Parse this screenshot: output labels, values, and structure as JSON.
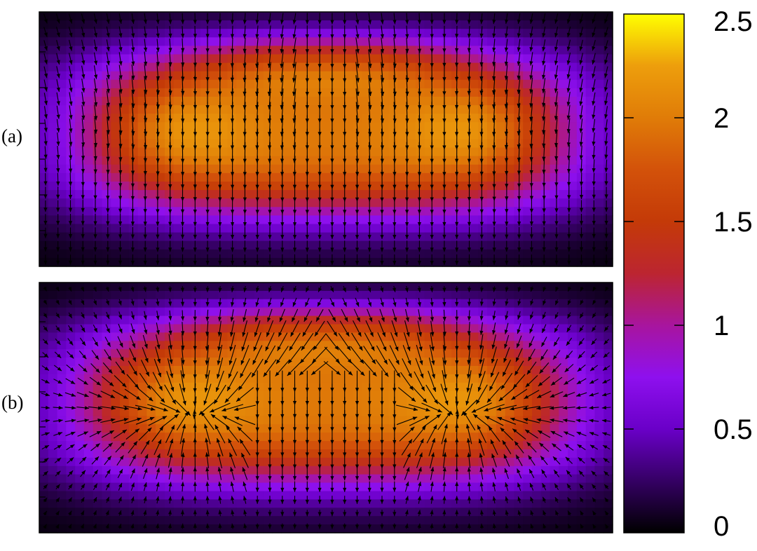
{
  "chart_data": {
    "type": "heatmap",
    "panels": [
      {
        "label": "(a)",
        "field": "two-lobed elongated density blob; peaks near the left and right lobes (~2.0-2.2), central band ~1.6-1.7, falling to ~0.5 at the rim and ~0 at the corners",
        "vectors": "arrows point predominantly downward; converging toward the center in the upper half of the lobes",
        "xrange": [
          0,
          1
        ],
        "yrange": [
          0,
          1
        ],
        "rotation": "counter-clockwise"
      },
      {
        "label": "(b)",
        "field": "similar two-lobed density blob; lobes ~2.0-2.1, central region ~1.6, rim ~0.5",
        "vectors": "arrows converge radially inward onto the left and right lobes and point inward along the top edge",
        "xrange": [
          0,
          1
        ],
        "yrange": [
          0,
          1
        ],
        "rotation": "clockwise"
      }
    ],
    "colorbar": {
      "min": 0,
      "max": 2.5,
      "ticks": [
        "0",
        "0.5",
        "1",
        "1.5",
        "2",
        "2.5"
      ],
      "tick_values": [
        0,
        0.5,
        1,
        1.5,
        2,
        2.5
      ],
      "colormap": "black-purple-red-orange-yellow",
      "stops": [
        [
          0.0,
          "#000000"
        ],
        [
          0.2,
          "#6a00c8"
        ],
        [
          0.3,
          "#8e10ee"
        ],
        [
          0.4,
          "#a8159e"
        ],
        [
          0.5,
          "#bc2530"
        ],
        [
          0.6,
          "#c43a08"
        ],
        [
          0.7,
          "#d3520a"
        ],
        [
          0.8,
          "#e07c08"
        ],
        [
          0.9,
          "#ed9e0c"
        ],
        [
          1.0,
          "#ffff00"
        ]
      ]
    },
    "legend": "none",
    "grid": false
  }
}
